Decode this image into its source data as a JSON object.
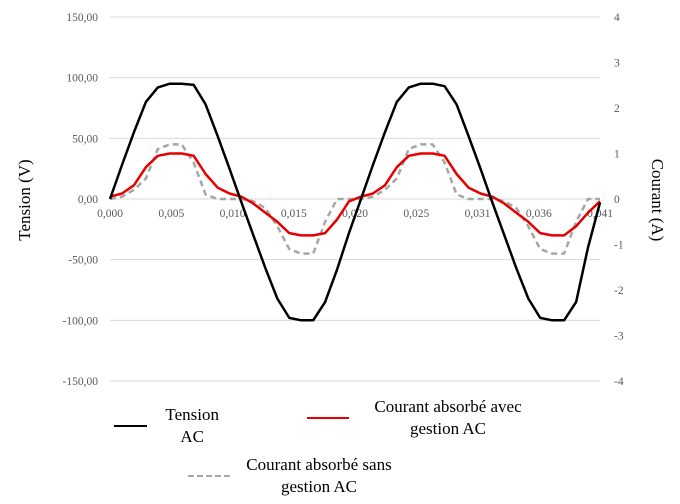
{
  "chart_data": {
    "type": "line",
    "title": "",
    "xlabel": "",
    "ylabel": "Tension (V)",
    "y2label": "Courant (A)",
    "xlim": [
      0,
      0.041
    ],
    "ylim": [
      -150,
      150
    ],
    "y2lim": [
      -4,
      4
    ],
    "x_ticks": [
      "0,000",
      "0,005",
      "0,010",
      "0,015",
      "0,020",
      "0,025",
      "0,031",
      "0,036",
      "0,041"
    ],
    "y_ticks": [
      "150,00",
      "100,00",
      "50,00",
      "0,00",
      "-50,00",
      "-100,00",
      "-150,00"
    ],
    "y2_ticks": [
      "4",
      "3",
      "2",
      "1",
      "0",
      "-1",
      "-2",
      "-3",
      "-4"
    ],
    "grid": true,
    "legend_position": "bottom",
    "series": [
      {
        "name": "Tension AC",
        "axis": "left",
        "color": "#000000",
        "style": "solid",
        "x": [
          0.0,
          0.001,
          0.002,
          0.003,
          0.004,
          0.005,
          0.006,
          0.007,
          0.008,
          0.009,
          0.01,
          0.011,
          0.012,
          0.013,
          0.014,
          0.015,
          0.016,
          0.017,
          0.018,
          0.019,
          0.02,
          0.021,
          0.022,
          0.023,
          0.024,
          0.025,
          0.026,
          0.027,
          0.028,
          0.029,
          0.03,
          0.031,
          0.032,
          0.033,
          0.034,
          0.035,
          0.036,
          0.037,
          0.038,
          0.039,
          0.04,
          0.041
        ],
        "values": [
          0,
          28,
          55,
          80,
          92,
          95,
          95,
          94,
          78,
          52,
          25,
          -3,
          -30,
          -57,
          -82,
          -98,
          -100,
          -100,
          -85,
          -58,
          -28,
          0,
          28,
          55,
          80,
          92,
          95,
          95,
          93,
          78,
          52,
          25,
          -3,
          -30,
          -57,
          -82,
          -98,
          -100,
          -100,
          -85,
          -40,
          -3
        ]
      },
      {
        "name": "Courant absorbé avec gestion AC",
        "axis": "right",
        "color": "#e60000",
        "style": "solid",
        "x": [
          0.0,
          0.001,
          0.002,
          0.003,
          0.004,
          0.005,
          0.006,
          0.007,
          0.008,
          0.009,
          0.01,
          0.011,
          0.012,
          0.013,
          0.014,
          0.015,
          0.016,
          0.017,
          0.018,
          0.019,
          0.02,
          0.021,
          0.022,
          0.023,
          0.024,
          0.025,
          0.026,
          0.027,
          0.028,
          0.029,
          0.03,
          0.031,
          0.032,
          0.033,
          0.034,
          0.035,
          0.036,
          0.037,
          0.038,
          0.039,
          0.04,
          0.041
        ],
        "values": [
          0.05,
          0.12,
          0.3,
          0.7,
          0.95,
          1.0,
          1.0,
          0.95,
          0.55,
          0.25,
          0.12,
          0.05,
          -0.1,
          -0.3,
          -0.5,
          -0.75,
          -0.8,
          -0.8,
          -0.75,
          -0.45,
          -0.05,
          0.05,
          0.12,
          0.3,
          0.7,
          0.95,
          1.0,
          1.0,
          0.95,
          0.55,
          0.25,
          0.12,
          0.05,
          -0.1,
          -0.3,
          -0.5,
          -0.75,
          -0.8,
          -0.8,
          -0.6,
          -0.3,
          -0.05
        ]
      },
      {
        "name": "Courant absorbé sans gestion AC",
        "axis": "right",
        "color": "#a6a6a6",
        "style": "dashed",
        "x": [
          0.0,
          0.001,
          0.002,
          0.003,
          0.004,
          0.005,
          0.006,
          0.007,
          0.008,
          0.009,
          0.01,
          0.011,
          0.012,
          0.013,
          0.014,
          0.015,
          0.016,
          0.017,
          0.018,
          0.019,
          0.02,
          0.021,
          0.022,
          0.023,
          0.024,
          0.025,
          0.026,
          0.027,
          0.028,
          0.029,
          0.03,
          0.031,
          0.032,
          0.033,
          0.034,
          0.035,
          0.036,
          0.037,
          0.038,
          0.039,
          0.04,
          0.041
        ],
        "values": [
          0.0,
          0.05,
          0.2,
          0.45,
          1.1,
          1.2,
          1.2,
          0.8,
          0.1,
          0.0,
          0.0,
          0.0,
          -0.05,
          -0.2,
          -0.6,
          -1.1,
          -1.2,
          -1.2,
          -0.5,
          0.0,
          0.0,
          0.0,
          0.05,
          0.2,
          0.45,
          1.1,
          1.2,
          1.2,
          0.8,
          0.1,
          0.0,
          0.0,
          0.0,
          -0.05,
          -0.2,
          -0.6,
          -1.1,
          -1.2,
          -1.2,
          -0.5,
          0.0,
          0.0
        ]
      }
    ]
  }
}
